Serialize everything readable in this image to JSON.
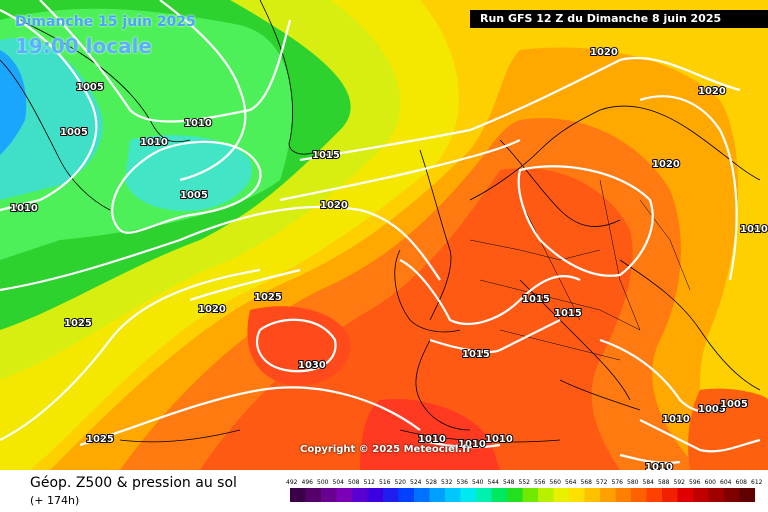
{
  "header": {
    "date": "Dimanche 15 juin 2025",
    "time": "19:00 locale",
    "run": "Run GFS 12 Z du Dimanche 8 juin 2025"
  },
  "copyright": "Copyright © 2025 Meteociel.fr",
  "footer": {
    "title": "Géop. Z500 & pression au sol",
    "step": "(+ 174h)"
  },
  "isobars": [
    {
      "label": "1005"
    },
    {
      "label": "1005"
    },
    {
      "label": "1005"
    },
    {
      "label": "1010"
    },
    {
      "label": "1010"
    },
    {
      "label": "1010"
    },
    {
      "label": "1015"
    },
    {
      "label": "1020"
    },
    {
      "label": "1020"
    },
    {
      "label": "1020"
    },
    {
      "label": "1025"
    },
    {
      "label": "1025"
    },
    {
      "label": "1030"
    },
    {
      "label": "1020"
    },
    {
      "label": "1020"
    },
    {
      "label": "1010"
    },
    {
      "label": "1015"
    },
    {
      "label": "1015"
    },
    {
      "label": "1015"
    },
    {
      "label": "1010"
    },
    {
      "label": "1005"
    },
    {
      "label": "1005"
    },
    {
      "label": "1010"
    },
    {
      "label": "1010"
    },
    {
      "label": "1010"
    },
    {
      "label": "1010"
    },
    {
      "label": "1025"
    }
  ],
  "scale": {
    "ticks": [
      "492",
      "496",
      "500",
      "504",
      "508",
      "512",
      "516",
      "520",
      "524",
      "528",
      "532",
      "536",
      "540",
      "544",
      "548",
      "552",
      "556",
      "560",
      "564",
      "568",
      "572",
      "576",
      "580",
      "584",
      "588",
      "592",
      "596",
      "600",
      "604",
      "608",
      "612"
    ],
    "colors": [
      "#3a0048",
      "#55006a",
      "#6a0090",
      "#7c00b8",
      "#5a00d0",
      "#3c00e0",
      "#1e1ef0",
      "#0040ff",
      "#0070ff",
      "#00a0ff",
      "#00c8ff",
      "#00e8f0",
      "#00f0b0",
      "#00e860",
      "#20e020",
      "#70e800",
      "#b8f000",
      "#e8f000",
      "#ffe000",
      "#ffc000",
      "#ffa000",
      "#ff8000",
      "#ff6000",
      "#ff4000",
      "#f02000",
      "#e00000",
      "#c00000",
      "#a00000",
      "#800000",
      "#600000"
    ]
  }
}
